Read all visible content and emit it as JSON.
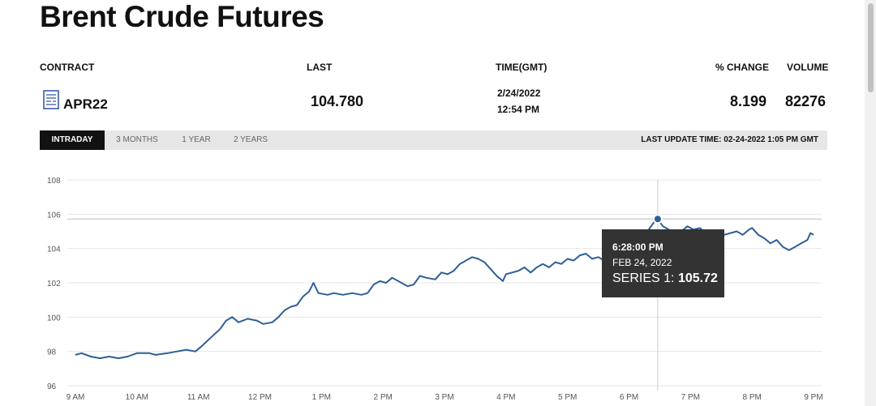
{
  "page": {
    "title": "Brent Crude Futures"
  },
  "quote": {
    "headers": {
      "contract": "CONTRACT",
      "last": "LAST",
      "time": "TIME(GMT)",
      "pct_change": "% CHANGE",
      "volume": "VOLUME"
    },
    "contract": "APR22",
    "contract_icon": "contract-document-icon",
    "last": "104.780",
    "date": "2/24/2022",
    "time": "12:54 PM",
    "pct_change": "8.199",
    "volume": "82276"
  },
  "tabs": {
    "items": [
      "INTRADAY",
      "3 MONTHS",
      "1 YEAR",
      "2 YEARS"
    ],
    "active": "INTRADAY",
    "last_update": "LAST UPDATE TIME: 02-24-2022 1:05 PM GMT"
  },
  "tooltip": {
    "time": "6:28:00 PM",
    "date": "FEB 24, 2022",
    "series_label": "SERIES 1:",
    "value": "105.72"
  },
  "colors": {
    "line": "#2e5f97",
    "tab_active_bg": "#111111",
    "tooltip_bg": "#333333"
  },
  "chart_data": {
    "type": "line",
    "x_unit": "hours",
    "xticks": [
      {
        "x": 9,
        "label": "9 AM"
      },
      {
        "x": 10,
        "label": "10 AM"
      },
      {
        "x": 11,
        "label": "11 AM"
      },
      {
        "x": 12,
        "label": "12 PM"
      },
      {
        "x": 13,
        "label": "1 PM"
      },
      {
        "x": 14,
        "label": "2 PM"
      },
      {
        "x": 15,
        "label": "3 PM"
      },
      {
        "x": 16,
        "label": "4 PM"
      },
      {
        "x": 17,
        "label": "5 PM"
      },
      {
        "x": 18,
        "label": "6 PM"
      },
      {
        "x": 19,
        "label": "7 PM"
      },
      {
        "x": 20,
        "label": "8 PM"
      },
      {
        "x": 21,
        "label": "9 PM"
      }
    ],
    "yticks": [
      96,
      98,
      100,
      102,
      104,
      106,
      108
    ],
    "xlim": [
      9,
      21
    ],
    "ylim": [
      96,
      108
    ],
    "grid": true,
    "reference_line": 105.72,
    "highlight": {
      "x": 18.467,
      "y": 105.72
    },
    "series": [
      {
        "points": [
          [
            9.0,
            97.8
          ],
          [
            9.1,
            97.9
          ],
          [
            9.25,
            97.7
          ],
          [
            9.4,
            97.6
          ],
          [
            9.55,
            97.7
          ],
          [
            9.7,
            97.6
          ],
          [
            9.85,
            97.7
          ],
          [
            10.0,
            97.9
          ],
          [
            10.2,
            97.9
          ],
          [
            10.3,
            97.8
          ],
          [
            10.5,
            97.9
          ],
          [
            10.65,
            98.0
          ],
          [
            10.8,
            98.1
          ],
          [
            10.95,
            98.0
          ],
          [
            11.05,
            98.3
          ],
          [
            11.2,
            98.8
          ],
          [
            11.35,
            99.3
          ],
          [
            11.45,
            99.8
          ],
          [
            11.55,
            100.0
          ],
          [
            11.65,
            99.7
          ],
          [
            11.8,
            99.9
          ],
          [
            11.95,
            99.8
          ],
          [
            12.05,
            99.6
          ],
          [
            12.2,
            99.7
          ],
          [
            12.3,
            100.0
          ],
          [
            12.4,
            100.4
          ],
          [
            12.5,
            100.6
          ],
          [
            12.6,
            100.7
          ],
          [
            12.7,
            101.2
          ],
          [
            12.8,
            101.5
          ],
          [
            12.87,
            102.0
          ],
          [
            12.95,
            101.4
          ],
          [
            13.1,
            101.3
          ],
          [
            13.2,
            101.4
          ],
          [
            13.35,
            101.3
          ],
          [
            13.5,
            101.4
          ],
          [
            13.65,
            101.3
          ],
          [
            13.75,
            101.4
          ],
          [
            13.85,
            101.9
          ],
          [
            13.95,
            102.1
          ],
          [
            14.05,
            102.0
          ],
          [
            14.15,
            102.3
          ],
          [
            14.3,
            102.0
          ],
          [
            14.4,
            101.8
          ],
          [
            14.5,
            101.9
          ],
          [
            14.6,
            102.4
          ],
          [
            14.7,
            102.3
          ],
          [
            14.85,
            102.2
          ],
          [
            14.95,
            102.6
          ],
          [
            15.05,
            102.5
          ],
          [
            15.15,
            102.7
          ],
          [
            15.25,
            103.1
          ],
          [
            15.35,
            103.3
          ],
          [
            15.45,
            103.5
          ],
          [
            15.55,
            103.4
          ],
          [
            15.65,
            103.2
          ],
          [
            15.75,
            102.8
          ],
          [
            15.85,
            102.4
          ],
          [
            15.95,
            102.1
          ],
          [
            16.0,
            102.5
          ],
          [
            16.1,
            102.6
          ],
          [
            16.2,
            102.7
          ],
          [
            16.3,
            102.9
          ],
          [
            16.4,
            102.6
          ],
          [
            16.5,
            102.9
          ],
          [
            16.6,
            103.1
          ],
          [
            16.7,
            102.9
          ],
          [
            16.8,
            103.2
          ],
          [
            16.9,
            103.1
          ],
          [
            17.0,
            103.4
          ],
          [
            17.1,
            103.3
          ],
          [
            17.2,
            103.6
          ],
          [
            17.3,
            103.7
          ],
          [
            17.4,
            103.4
          ],
          [
            17.5,
            103.5
          ],
          [
            17.6,
            103.3
          ],
          [
            17.7,
            103.7
          ],
          [
            17.8,
            103.9
          ],
          [
            17.9,
            104.0
          ],
          [
            18.0,
            104.2
          ],
          [
            18.1,
            104.3
          ],
          [
            18.2,
            104.5
          ],
          [
            18.3,
            105.0
          ],
          [
            18.4,
            105.5
          ],
          [
            18.467,
            105.72
          ],
          [
            18.55,
            105.3
          ],
          [
            18.65,
            105.1
          ],
          [
            18.75,
            104.8
          ],
          [
            18.85,
            105.0
          ],
          [
            18.95,
            105.3
          ],
          [
            19.05,
            105.1
          ],
          [
            19.15,
            105.2
          ],
          [
            19.25,
            104.9
          ],
          [
            19.35,
            104.9
          ],
          [
            19.45,
            104.6
          ],
          [
            19.55,
            104.8
          ],
          [
            19.65,
            104.9
          ],
          [
            19.75,
            105.0
          ],
          [
            19.85,
            104.8
          ],
          [
            19.95,
            105.1
          ],
          [
            20.0,
            105.2
          ],
          [
            20.1,
            104.8
          ],
          [
            20.2,
            104.6
          ],
          [
            20.3,
            104.3
          ],
          [
            20.4,
            104.5
          ],
          [
            20.5,
            104.1
          ],
          [
            20.6,
            103.9
          ],
          [
            20.7,
            104.1
          ],
          [
            20.8,
            104.3
          ],
          [
            20.9,
            104.5
          ],
          [
            20.95,
            104.9
          ],
          [
            21.0,
            104.8
          ]
        ]
      }
    ]
  }
}
